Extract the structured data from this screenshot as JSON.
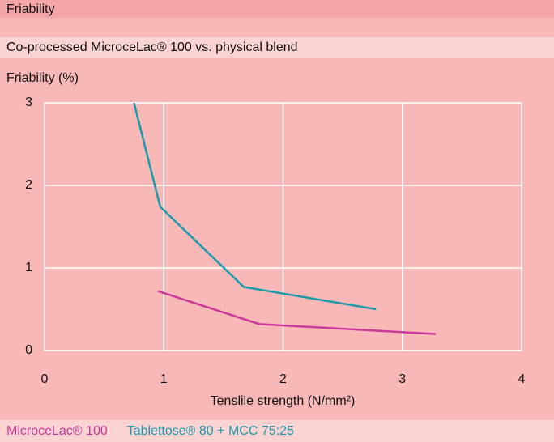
{
  "chart_data": {
    "type": "line",
    "title": "Friability",
    "subtitle": "Co-processed MicroceLac® 100 vs. physical blend",
    "ylabel": "Friability (%)",
    "xlabel": "Tenslile strength (N/mm²)",
    "series": [
      {
        "name": "MicroceLac® 100",
        "color": "#c8399a",
        "x": [
          0.95,
          1.8,
          3.28
        ],
        "values": [
          0.72,
          0.32,
          0.2
        ]
      },
      {
        "name": "Tablettose® 80 + MCC 75:25",
        "color": "#1a9aaa",
        "x": [
          0.75,
          0.97,
          1.67,
          2.78
        ],
        "values": [
          3.0,
          1.74,
          0.77,
          0.5
        ]
      }
    ],
    "xlim": [
      0,
      4
    ],
    "xticks": [
      0,
      1,
      2,
      3,
      4
    ],
    "ylim": [
      0,
      3
    ],
    "yticks": [
      0,
      1,
      2,
      3
    ],
    "grid": true
  }
}
